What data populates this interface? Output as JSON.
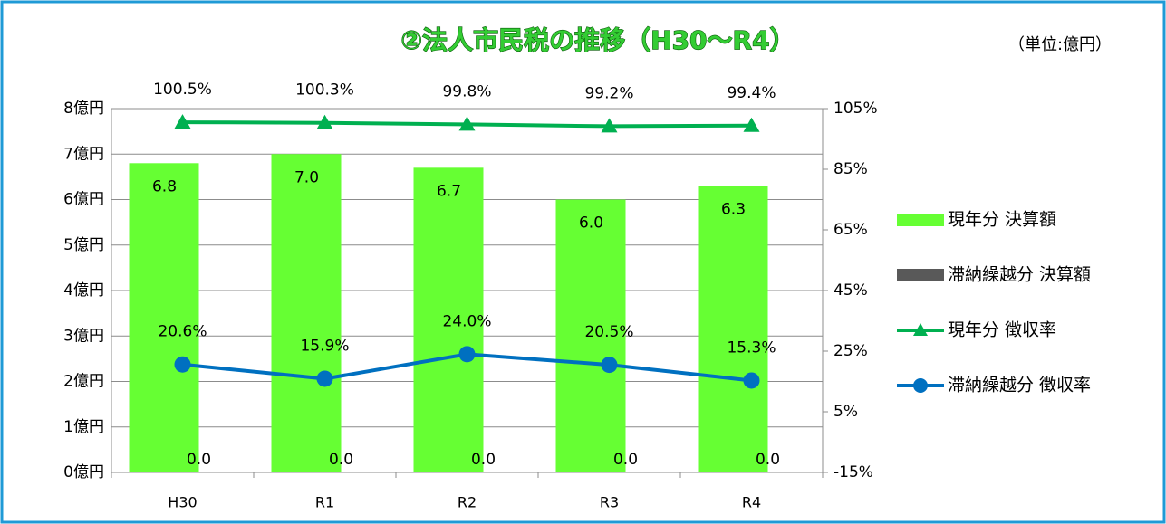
{
  "chart_data": {
    "type": "bar",
    "title": "②法人市民税の推移（H30～R4）",
    "subtitle": "（単位:億円）",
    "categories": [
      "H30",
      "R1",
      "R2",
      "R3",
      "R4"
    ],
    "series": [
      {
        "name": "現年分 決算額",
        "color": "#66ff33",
        "values": [
          6.8,
          7.0,
          6.7,
          6.0,
          6.3
        ],
        "value_labels": [
          "6.8",
          "7.0",
          "6.7",
          "6.0",
          "6.3"
        ]
      },
      {
        "name": "滞納繰越分 決算額",
        "color": "#595959",
        "values": [
          0,
          0,
          0,
          0,
          0
        ],
        "value_labels": [
          "0.0",
          "0.0",
          "0.0",
          "0.0",
          "0.0"
        ]
      },
      {
        "name": "現年分 徴収率",
        "type": "line",
        "marker": "triangle",
        "axis": "y2",
        "color": "#00b050",
        "values": [
          100.5,
          100.3,
          99.8,
          99.2,
          99.4
        ],
        "value_labels": [
          "100.5%",
          "100.3%",
          "99.8%",
          "99.2%",
          "99.4%"
        ]
      },
      {
        "name": "滞納繰越分 徴収率",
        "type": "line",
        "marker": "circle",
        "axis": "y2",
        "color": "#0070c0",
        "values": [
          20.6,
          15.9,
          24.0,
          20.5,
          15.3
        ],
        "value_labels": [
          "20.6%",
          "15.9%",
          "24.0%",
          "20.5%",
          "15.3%"
        ]
      }
    ],
    "ylim": [
      0,
      8
    ],
    "yticks": [
      {
        "value": 0,
        "label": "0億円"
      },
      {
        "value": 1,
        "label": "1億円"
      },
      {
        "value": 2,
        "label": "2億円"
      },
      {
        "value": 3,
        "label": "3億円"
      },
      {
        "value": 4,
        "label": "4億円"
      },
      {
        "value": 5,
        "label": "5億円"
      },
      {
        "value": 6,
        "label": "6億円"
      },
      {
        "value": 7,
        "label": "7億円"
      },
      {
        "value": 8,
        "label": "8億円"
      }
    ],
    "y2lim": [
      -15,
      105
    ],
    "y2ticks": [
      {
        "value": -15,
        "label": "-15%"
      },
      {
        "value": 5,
        "label": "5%"
      },
      {
        "value": 25,
        "label": "25%"
      },
      {
        "value": 45,
        "label": "45%"
      },
      {
        "value": 65,
        "label": "65%"
      },
      {
        "value": 85,
        "label": "85%"
      },
      {
        "value": 105,
        "label": "105%"
      }
    ],
    "grid": true,
    "legend": "right"
  }
}
